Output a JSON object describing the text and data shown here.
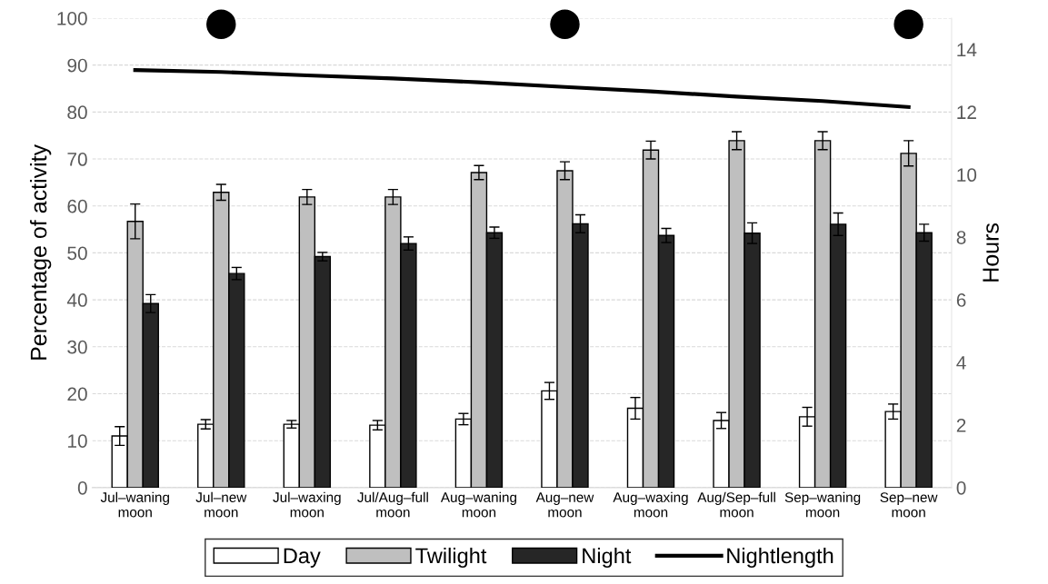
{
  "chart_data": {
    "type": "bar",
    "ylabel": "Percentage of activity",
    "y2label": "Hours",
    "categories": [
      "Jul–waning\nmoon",
      "Jul–new\nmoon",
      "Jul–waxing\nmoon",
      "Jul/Aug–full\nmoon",
      "Aug–waning\nmoon",
      "Aug–new\nmoon",
      "Aug–waxing\nmoon",
      "Aug/Sep–full\nmoon",
      "Sep–waning\nmoon",
      "Sep–new\nmoon"
    ],
    "series": [
      {
        "name": "Day",
        "color": "#ffffff",
        "values": [
          11.0,
          13.5,
          13.5,
          13.3,
          14.6,
          20.6,
          16.9,
          14.3,
          15.1,
          16.2
        ],
        "errors": [
          2.0,
          1.0,
          0.8,
          1.0,
          1.2,
          1.8,
          2.3,
          1.7,
          2.0,
          1.6
        ]
      },
      {
        "name": "Twilight",
        "color": "#bfbfbf",
        "values": [
          56.7,
          62.9,
          61.9,
          61.9,
          67.1,
          67.5,
          71.9,
          73.9,
          73.9,
          71.2
        ],
        "errors": [
          3.7,
          1.7,
          1.6,
          1.6,
          1.5,
          1.9,
          1.9,
          1.9,
          1.9,
          2.7
        ]
      },
      {
        "name": "Night",
        "color": "#262626",
        "values": [
          39.2,
          45.6,
          49.2,
          52.0,
          54.3,
          56.2,
          53.7,
          54.2,
          56.1,
          54.3
        ],
        "errors": [
          1.9,
          1.3,
          0.9,
          1.4,
          1.2,
          1.9,
          1.5,
          2.2,
          2.4,
          1.8
        ]
      },
      {
        "name": "Nightlength",
        "type": "line",
        "axis": "y2",
        "color": "#000000",
        "marker": "none",
        "values": [
          13.34,
          13.28,
          13.17,
          13.07,
          12.95,
          12.8,
          12.66,
          12.49,
          12.35,
          12.16
        ]
      },
      {
        "type": "scatter",
        "axis": "y2",
        "color": "#000000",
        "marker": "circle",
        "values": [
          null,
          14.8,
          null,
          null,
          null,
          14.8,
          null,
          null,
          null,
          14.8
        ]
      }
    ],
    "ylim": [
      0,
      100
    ],
    "yticks": [
      0,
      10,
      20,
      30,
      40,
      50,
      60,
      70,
      80,
      90,
      100
    ],
    "y2lim": [
      0,
      15
    ],
    "y2ticks": [
      0,
      2,
      4,
      6,
      8,
      10,
      12,
      14
    ],
    "grid": "y",
    "legend": "bottom"
  }
}
